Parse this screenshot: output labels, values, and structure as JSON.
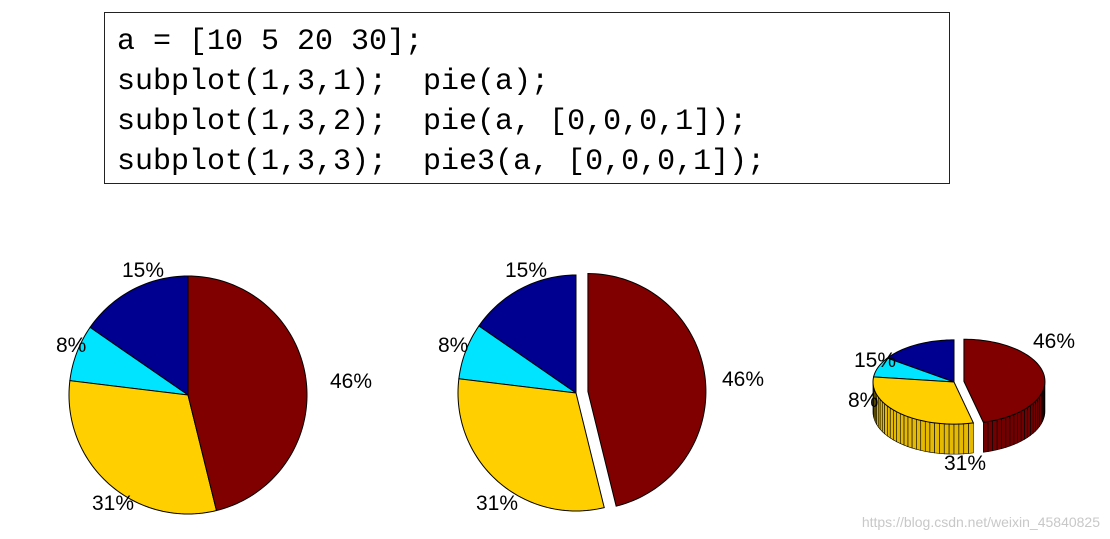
{
  "code": {
    "lines": [
      "a = [10 5 20 30];",
      "subplot(1,3,1);  pie(a);",
      "subplot(1,3,2);  pie(a, [0,0,0,1]);",
      "subplot(1,3,3);  pie3(a, [0,0,0,1]);"
    ]
  },
  "chart_data": [
    {
      "type": "pie",
      "values": [
        10,
        5,
        20,
        30
      ],
      "labels": [
        "15%",
        "8%",
        "31%",
        "46%"
      ],
      "explode": [
        0,
        0,
        0,
        0
      ],
      "colors": [
        "#000090",
        "#00e4ff",
        "#ffcf00",
        "#800000"
      ]
    },
    {
      "type": "pie",
      "values": [
        10,
        5,
        20,
        30
      ],
      "labels": [
        "15%",
        "8%",
        "31%",
        "46%"
      ],
      "explode": [
        0,
        0,
        0,
        1
      ],
      "colors": [
        "#000090",
        "#00e4ff",
        "#ffcf00",
        "#800000"
      ]
    },
    {
      "type": "pie3",
      "values": [
        10,
        5,
        20,
        30
      ],
      "labels": [
        "15%",
        "8%",
        "31%",
        "46%"
      ],
      "explode": [
        0,
        0,
        0,
        1
      ],
      "colors": [
        "#000090",
        "#00e4ff",
        "#ffcf00",
        "#800000"
      ]
    }
  ],
  "watermark": "https://blog.csdn.net/weixin_45840825"
}
